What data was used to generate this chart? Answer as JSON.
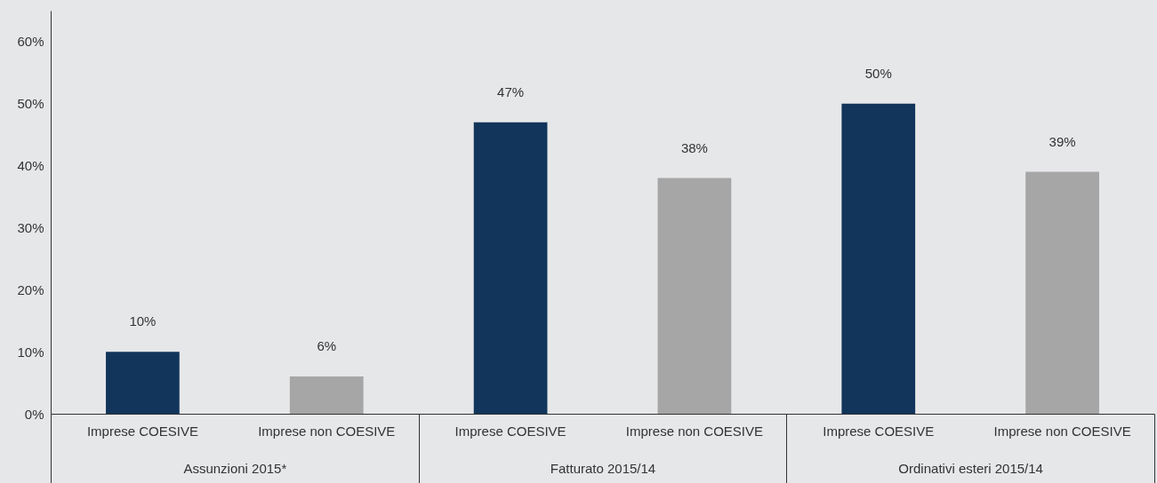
{
  "chart_data": {
    "type": "bar",
    "categories": [
      "Assunzioni 2015*",
      "Fatturato 2015/14",
      "Ordinativi esteri 2015/14"
    ],
    "series": [
      {
        "name": "Imprese COESIVE",
        "color": "#12355b",
        "values": [
          10,
          47,
          50
        ],
        "value_labels": [
          "10%",
          "47%",
          "50%"
        ]
      },
      {
        "name": "Imprese non COESIVE",
        "color": "#a6a6a6",
        "values": [
          6,
          38,
          39
        ],
        "value_labels": [
          "6%",
          "38%",
          "39%"
        ]
      }
    ],
    "ylim": [
      0,
      65
    ],
    "yticks": [
      {
        "value": 0,
        "label": "0%"
      },
      {
        "value": 10,
        "label": "10%"
      },
      {
        "value": 20,
        "label": "20%"
      },
      {
        "value": 30,
        "label": "30%"
      },
      {
        "value": 40,
        "label": "40%"
      },
      {
        "value": 50,
        "label": "50%"
      },
      {
        "value": 60,
        "label": "60%"
      }
    ],
    "grid": false
  }
}
